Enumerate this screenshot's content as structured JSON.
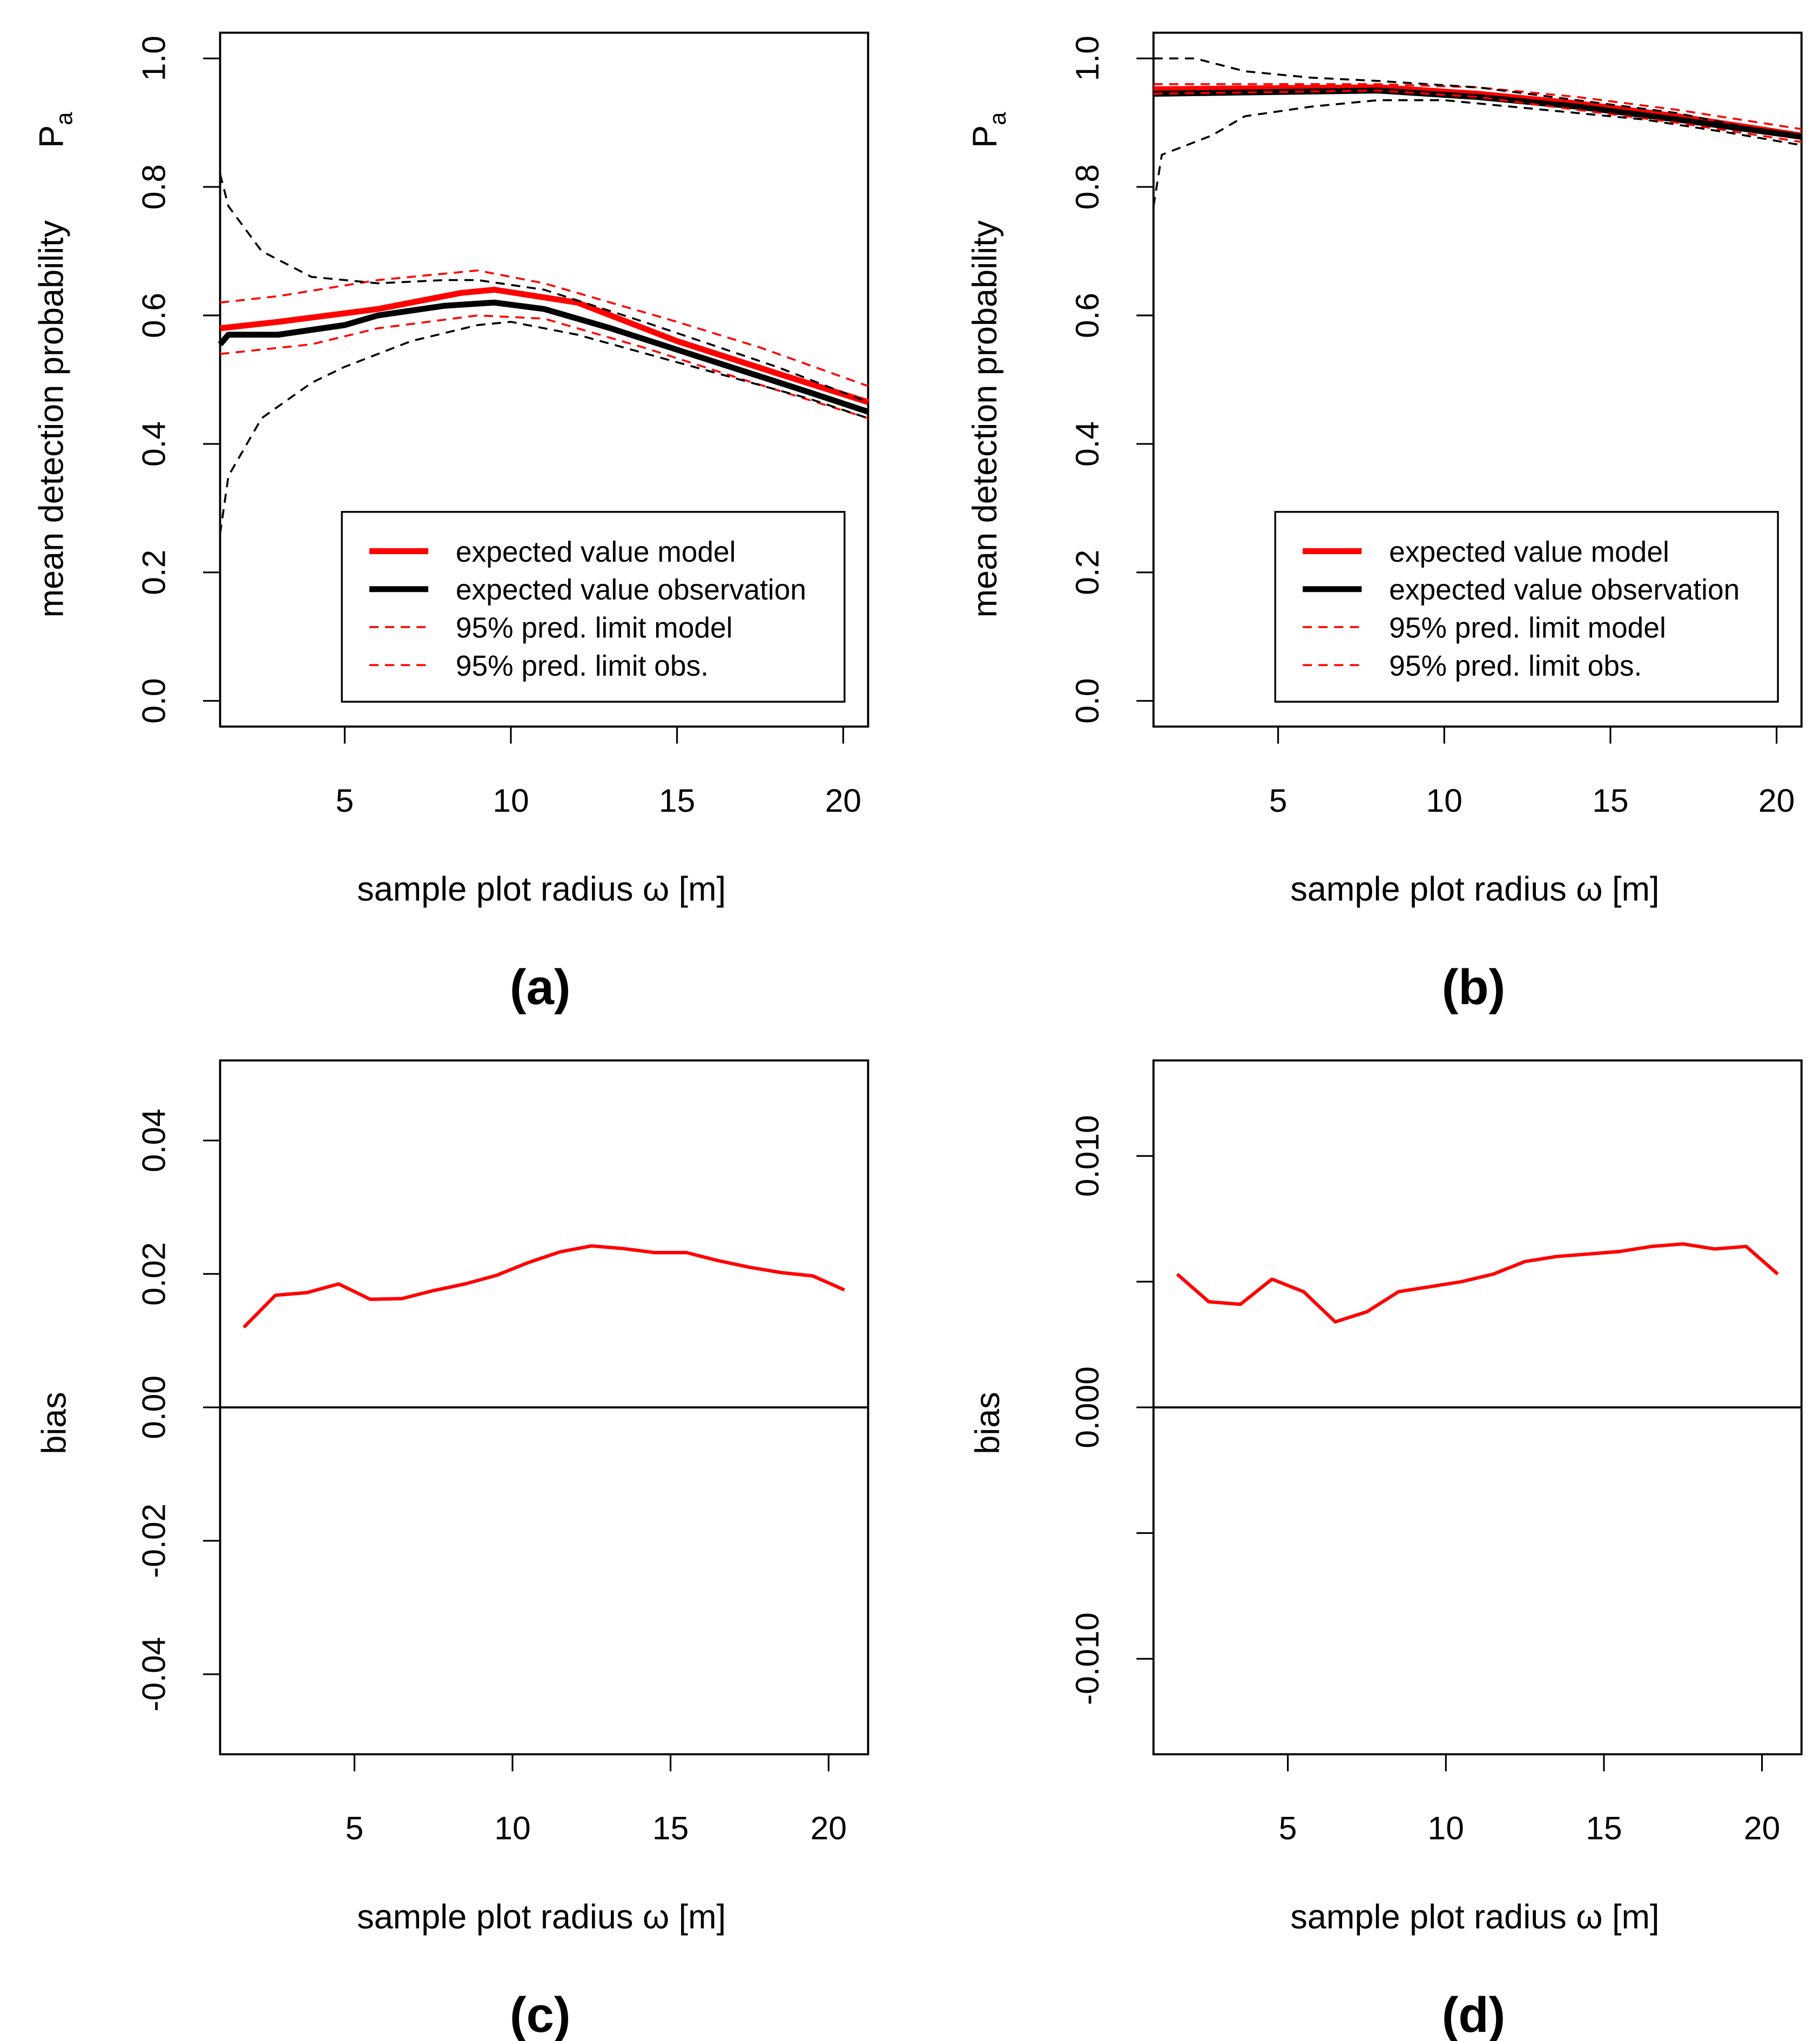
{
  "chart_data": [
    {
      "id": "a",
      "type": "line",
      "panel_label": "(a)",
      "xlabel": "sample plot radius ω [m]",
      "ylabel": "mean detection probability",
      "ylabel_symbol": "P",
      "ylabel_subscript": "a",
      "xlim": [
        1.25,
        20.75
      ],
      "ylim": [
        -0.04,
        1.04
      ],
      "xticks": [
        5,
        10,
        15,
        20
      ],
      "yticks": [
        "0.0",
        "0.2",
        "0.4",
        "0.6",
        "0.8",
        "1.0"
      ],
      "legend": {
        "placement": "bottom-right",
        "entries": [
          "expected value model",
          "expected value observation",
          "95% pred. limit model",
          "95% pred. limit obs."
        ]
      },
      "series": [
        {
          "name": "expected value model",
          "color": "#ff0000",
          "style": "solid",
          "width": "thick",
          "x": [
            1.25,
            3,
            6,
            8.5,
            9.5,
            12,
            15,
            18,
            20.75
          ],
          "y": [
            0.58,
            0.59,
            0.61,
            0.635,
            0.64,
            0.62,
            0.56,
            0.51,
            0.465
          ]
        },
        {
          "name": "expected value observation",
          "color": "#000000",
          "style": "solid",
          "width": "thick",
          "x": [
            1.25,
            1.5,
            3,
            5,
            6,
            8,
            9.5,
            11,
            13,
            16,
            19,
            20.75
          ],
          "y": [
            0.555,
            0.57,
            0.57,
            0.585,
            0.6,
            0.615,
            0.62,
            0.61,
            0.58,
            0.53,
            0.48,
            0.45
          ]
        },
        {
          "name": "95% pred. limit model (upper)",
          "color": "#ff0000",
          "style": "dashed",
          "x": [
            1.25,
            3,
            6,
            9,
            11,
            15,
            17.5,
            20.75
          ],
          "y": [
            0.62,
            0.63,
            0.655,
            0.67,
            0.65,
            0.59,
            0.55,
            0.49
          ]
        },
        {
          "name": "95% pred. limit model (lower)",
          "color": "#ff0000",
          "style": "dashed",
          "x": [
            1.25,
            4,
            6,
            9,
            11,
            14,
            17,
            20.75
          ],
          "y": [
            0.54,
            0.555,
            0.58,
            0.6,
            0.595,
            0.55,
            0.5,
            0.44
          ]
        },
        {
          "name": "95% pred. limit obs. (upper)",
          "color": "#000000",
          "style": "dashed",
          "x": [
            1.25,
            1.5,
            2.5,
            4,
            6,
            8,
            9,
            11,
            14,
            18,
            20.75
          ],
          "y": [
            0.82,
            0.77,
            0.7,
            0.66,
            0.65,
            0.655,
            0.655,
            0.64,
            0.59,
            0.52,
            0.465
          ]
        },
        {
          "name": "95% pred. limit obs. (lower)",
          "color": "#000000",
          "style": "dashed",
          "x": [
            1.25,
            1.5,
            2.5,
            4,
            5,
            7,
            9,
            10,
            12,
            15.5,
            19,
            20.75
          ],
          "y": [
            0.26,
            0.35,
            0.44,
            0.495,
            0.52,
            0.56,
            0.585,
            0.59,
            0.57,
            0.52,
            0.47,
            0.44
          ]
        }
      ]
    },
    {
      "id": "b",
      "type": "line",
      "panel_label": "(b)",
      "xlabel": "sample plot radius ω [m]",
      "ylabel": "mean detection probability",
      "ylabel_symbol": "P",
      "ylabel_subscript": "a",
      "xlim": [
        1.25,
        20.75
      ],
      "ylim": [
        -0.04,
        1.04
      ],
      "xticks": [
        5,
        10,
        15,
        20
      ],
      "yticks": [
        "0.0",
        "0.2",
        "0.4",
        "0.6",
        "0.8",
        "1.0"
      ],
      "legend": {
        "placement": "bottom-right",
        "entries": [
          "expected value model",
          "expected value observation",
          "95% pred. limit model",
          "95% pred. limit obs."
        ]
      },
      "series": [
        {
          "name": "expected value model",
          "color": "#ff0000",
          "style": "solid",
          "width": "thick",
          "x": [
            1.25,
            8,
            11,
            14,
            17,
            20.75
          ],
          "y": [
            0.952,
            0.955,
            0.945,
            0.93,
            0.91,
            0.88
          ]
        },
        {
          "name": "expected value observation",
          "color": "#000000",
          "style": "solid",
          "width": "thick",
          "x": [
            1.25,
            8,
            11,
            14,
            17,
            20.75
          ],
          "y": [
            0.945,
            0.95,
            0.94,
            0.925,
            0.905,
            0.878
          ]
        },
        {
          "name": "95% pred. limit model (upper)",
          "color": "#ff0000",
          "style": "dashed",
          "x": [
            1.25,
            8,
            11,
            14,
            17,
            20.75
          ],
          "y": [
            0.96,
            0.96,
            0.955,
            0.94,
            0.92,
            0.89
          ]
        },
        {
          "name": "95% pred. limit model (lower)",
          "color": "#ff0000",
          "style": "dashed",
          "x": [
            1.25,
            8,
            11,
            14,
            17,
            20.75
          ],
          "y": [
            0.945,
            0.95,
            0.94,
            0.92,
            0.9,
            0.87
          ]
        },
        {
          "name": "95% pred. limit obs. (upper)",
          "color": "#000000",
          "style": "dashed",
          "x": [
            1.25,
            2.5,
            4,
            6,
            8,
            11,
            14,
            17,
            20.75
          ],
          "y": [
            1.0,
            1.0,
            0.98,
            0.97,
            0.965,
            0.955,
            0.935,
            0.915,
            0.875
          ]
        },
        {
          "name": "95% pred. limit obs. (lower)",
          "color": "#000000",
          "style": "dashed",
          "x": [
            1.25,
            1.5,
            3,
            4,
            6,
            8,
            10,
            13,
            16,
            18.5,
            20.75
          ],
          "y": [
            0.77,
            0.85,
            0.88,
            0.91,
            0.925,
            0.935,
            0.935,
            0.92,
            0.905,
            0.885,
            0.865
          ]
        }
      ]
    },
    {
      "id": "c",
      "type": "line",
      "panel_label": "(c)",
      "xlabel": "sample plot radius ω [m]",
      "ylabel": "bias",
      "xlim": [
        0.75,
        21.25
      ],
      "ylim": [
        -0.052,
        0.052
      ],
      "xticks": [
        5,
        10,
        15,
        20
      ],
      "yticks": [
        "-0.04",
        "-0.02",
        "0.00",
        "0.02",
        "0.04"
      ],
      "hline": 0,
      "series": [
        {
          "name": "bias",
          "color": "#ff0000",
          "style": "solid",
          "x": [
            1.5,
            2.5,
            3.5,
            4.5,
            5.5,
            6.5,
            7.5,
            8.5,
            9.5,
            10.5,
            11.5,
            12.5,
            13.5,
            14.5,
            15.5,
            16.5,
            17.5,
            18.5,
            19.5,
            20.5
          ],
          "y": [
            0.012,
            0.0168,
            0.0172,
            0.0185,
            0.0162,
            0.0163,
            0.0175,
            0.0185,
            0.0198,
            0.0217,
            0.0233,
            0.0242,
            0.0238,
            0.0232,
            0.0232,
            0.022,
            0.021,
            0.0202,
            0.0197,
            0.0176
          ]
        }
      ]
    },
    {
      "id": "d",
      "type": "line",
      "panel_label": "(d)",
      "xlabel": "sample plot radius ω [m]",
      "ylabel": "bias",
      "xlim": [
        0.75,
        21.25
      ],
      "ylim": [
        -0.0138,
        0.0138
      ],
      "xticks": [
        5,
        10,
        15,
        20
      ],
      "yticks": [
        "-0.010",
        "",
        "0.000",
        "",
        "0.010"
      ],
      "hline": 0,
      "series": [
        {
          "name": "bias",
          "color": "#ff0000",
          "style": "solid",
          "x": [
            1.5,
            2.5,
            3.5,
            4.5,
            5.5,
            6.5,
            7.5,
            8.5,
            9.5,
            10.5,
            11.5,
            12.5,
            13.5,
            14.5,
            15.5,
            16.5,
            17.5,
            18.5,
            19.5,
            20.5
          ],
          "y": [
            0.0053,
            0.0042,
            0.0041,
            0.0051,
            0.0046,
            0.0034,
            0.0038,
            0.0046,
            0.0048,
            0.005,
            0.0053,
            0.0058,
            0.006,
            0.0061,
            0.0062,
            0.0064,
            0.0065,
            0.0063,
            0.0064,
            0.0053
          ]
        }
      ]
    }
  ]
}
